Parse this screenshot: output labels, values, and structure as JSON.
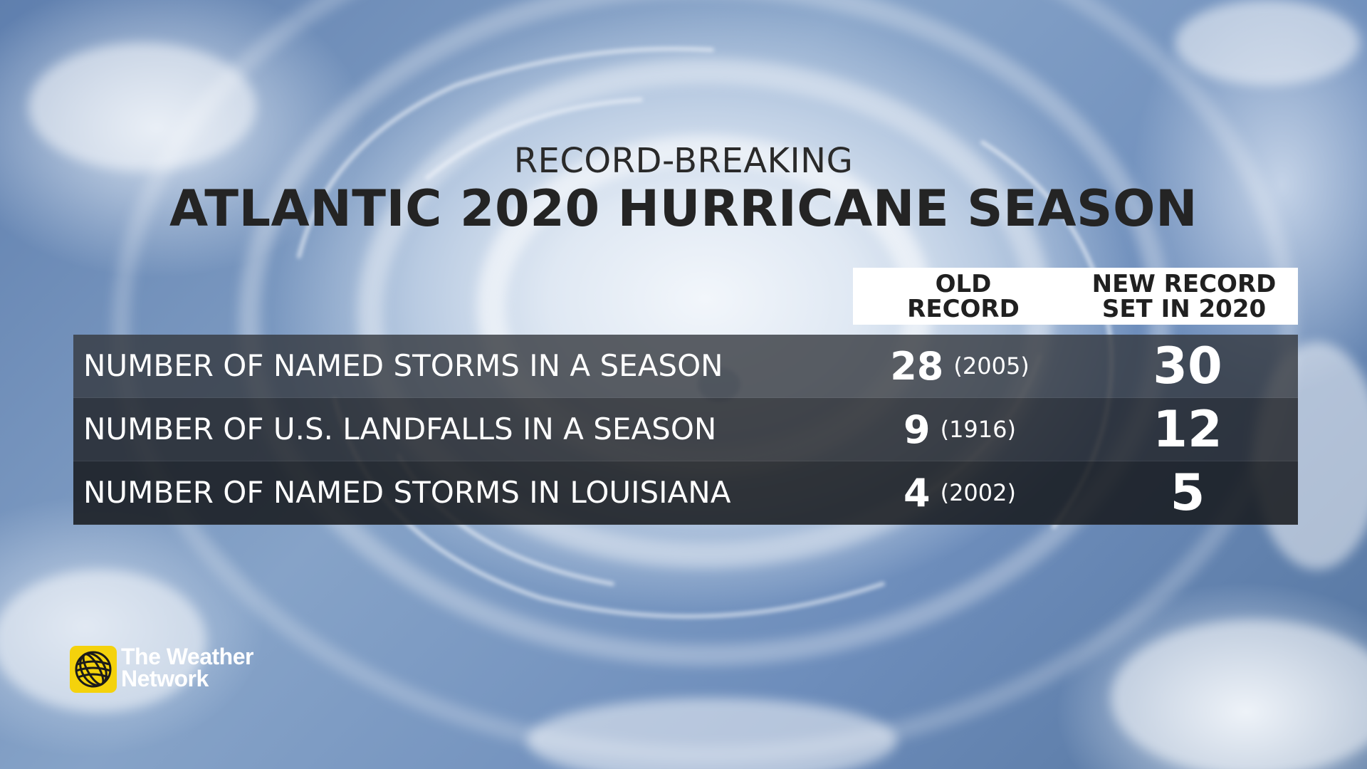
{
  "heading": {
    "subtitle": "RECORD-BREAKING",
    "title": "ATLANTIC 2020 HURRICANE SEASON"
  },
  "columns": {
    "old_line1": "OLD",
    "old_line2": "RECORD",
    "new_line1": "NEW RECORD",
    "new_line2": "SET IN 2020"
  },
  "rows": [
    {
      "label": "NUMBER OF NAMED STORMS IN A SEASON",
      "old_value": "28",
      "old_year": "(2005)",
      "new_value": "30"
    },
    {
      "label": "NUMBER OF U.S. LANDFALLS IN A SEASON",
      "old_value": "9",
      "old_year": "(1916)",
      "new_value": "12"
    },
    {
      "label": "NUMBER OF NAMED STORMS IN LOUISIANA",
      "old_value": "4",
      "old_year": "(2002)",
      "new_value": "5"
    }
  ],
  "logo": {
    "line1": "The Weather",
    "line2": "Network",
    "mark_color": "#f4d20c"
  },
  "background": {
    "description_icon": "hurricane-satellite-image"
  }
}
